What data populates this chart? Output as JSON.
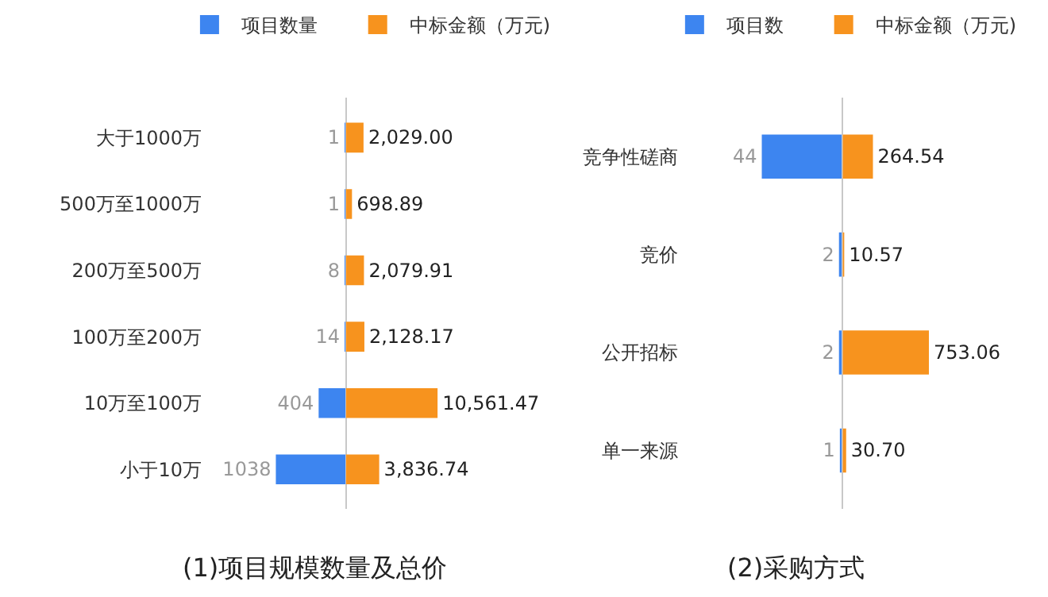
{
  "chart_data": [
    {
      "type": "bar",
      "orientation": "horizontal",
      "title": "(1)项目规模数量及总价",
      "legend": "top",
      "data_labels": true,
      "categories": [
        "大于1000万",
        "500万至1000万",
        "200万至500万",
        "100万至200万",
        "10万至100万",
        "小于10万"
      ],
      "series": [
        {
          "name": "项目数量",
          "color": "#3d85f0",
          "values": [
            1,
            1,
            8,
            14,
            404,
            1038
          ]
        }
      ]
    },
    {
      "type": "bar",
      "orientation": "horizontal",
      "legend": "top",
      "categories": [
        null,
        null,
        null,
        null,
        null,
        null
      ],
      "series": [
        {
          "name": "中标金额（万元)",
          "color": "#f7931e",
          "values": [
            2029.0,
            698.89,
            2079.91,
            2128.17,
            10561.47,
            3836.74
          ],
          "value_labels": [
            "2,029.00",
            "698.89",
            "2,079.91",
            "2,128.17",
            "10,561.47",
            "3,836.74"
          ]
        }
      ]
    },
    {
      "type": "bar",
      "orientation": "horizontal",
      "title": "(2)采购方式",
      "legend": "top",
      "data_labels": true,
      "categories": [
        "竞争性磋商",
        "竞价",
        "公开招标",
        "单一来源"
      ],
      "series": [
        {
          "name": "项目数",
          "color": "#3d85f0",
          "values": [
            44,
            2,
            2,
            1
          ]
        }
      ]
    },
    {
      "type": "bar",
      "orientation": "horizontal",
      "legend": "top",
      "categories": [
        null,
        null,
        null,
        null
      ],
      "series": [
        {
          "name": "中标金额（万元)",
          "color": "#f7931e",
          "values": [
            264.54,
            10.57,
            753.06,
            30.7
          ],
          "value_labels": [
            "264.54",
            "10.57",
            "753.06",
            "30.70"
          ]
        }
      ]
    }
  ]
}
